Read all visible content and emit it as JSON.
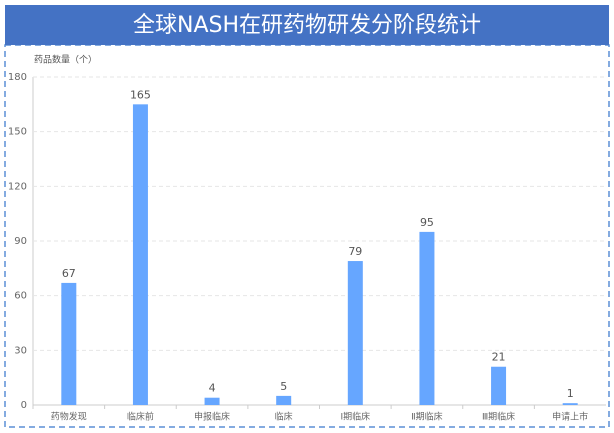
{
  "chart_data": {
    "type": "bar",
    "title": "全球NASH在研药物研发分阶段统计",
    "y_label": "药品数量（个）",
    "categories": [
      "药物发现",
      "临床前",
      "申报临床",
      "临床",
      "Ⅰ期临床",
      "Ⅱ期临床",
      "Ⅲ期临床",
      "申请上市"
    ],
    "values": [
      67,
      165,
      4,
      5,
      79,
      95,
      21,
      1
    ],
    "color": "#66a6ff",
    "ylim": [
      0,
      180
    ],
    "yticks": [
      0,
      30,
      60,
      90,
      120,
      150,
      180
    ],
    "grid": true
  }
}
